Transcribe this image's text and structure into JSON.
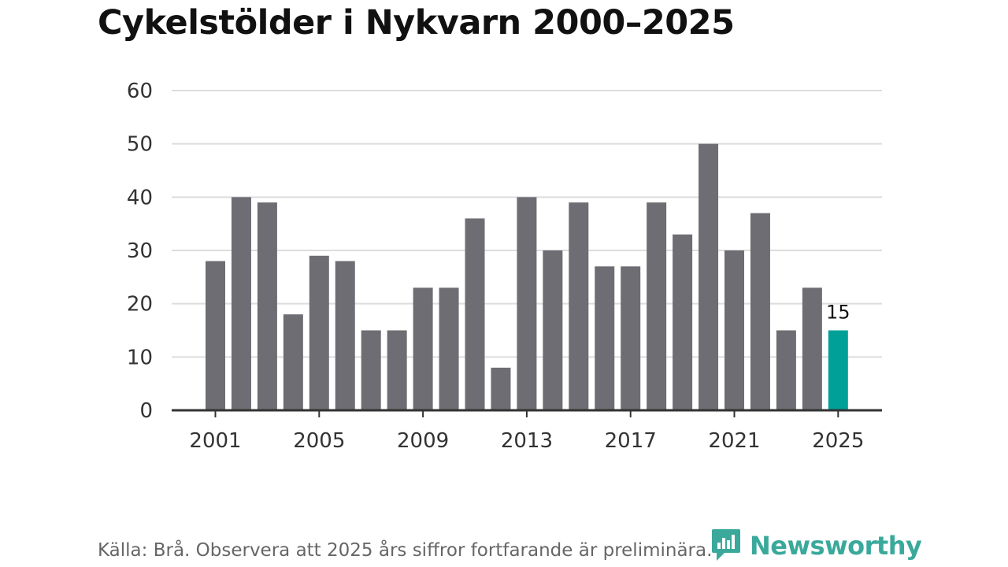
{
  "title": "Cykelstölder i Nykvarn 2000–2025",
  "source": "Källa: Brå. Observera att 2025 års siffror fortfarande är preliminära.",
  "brand": {
    "name": "Newsworthy",
    "color": "#3aa99b"
  },
  "colors": {
    "bar": "#6e6d73",
    "highlight": "#00a098",
    "grid": "#dddddd",
    "axis": "#333333",
    "text": "#333333"
  },
  "chart_data": {
    "type": "bar",
    "x": [
      2001,
      2002,
      2003,
      2004,
      2005,
      2006,
      2007,
      2008,
      2009,
      2010,
      2011,
      2012,
      2013,
      2014,
      2015,
      2016,
      2017,
      2018,
      2019,
      2020,
      2021,
      2022,
      2023,
      2024,
      2025
    ],
    "values": [
      28,
      40,
      39,
      18,
      29,
      28,
      15,
      15,
      23,
      23,
      36,
      8,
      40,
      30,
      39,
      27,
      27,
      39,
      33,
      50,
      30,
      37,
      15,
      23,
      15
    ],
    "x_tick_labels": [
      "2001",
      "2005",
      "2009",
      "2013",
      "2017",
      "2021",
      "2025"
    ],
    "y_ticks": [
      0,
      10,
      20,
      30,
      40,
      50,
      60
    ],
    "ylim": [
      0,
      60
    ],
    "highlight": {
      "x": 2025,
      "label": "15"
    },
    "grid": true
  }
}
